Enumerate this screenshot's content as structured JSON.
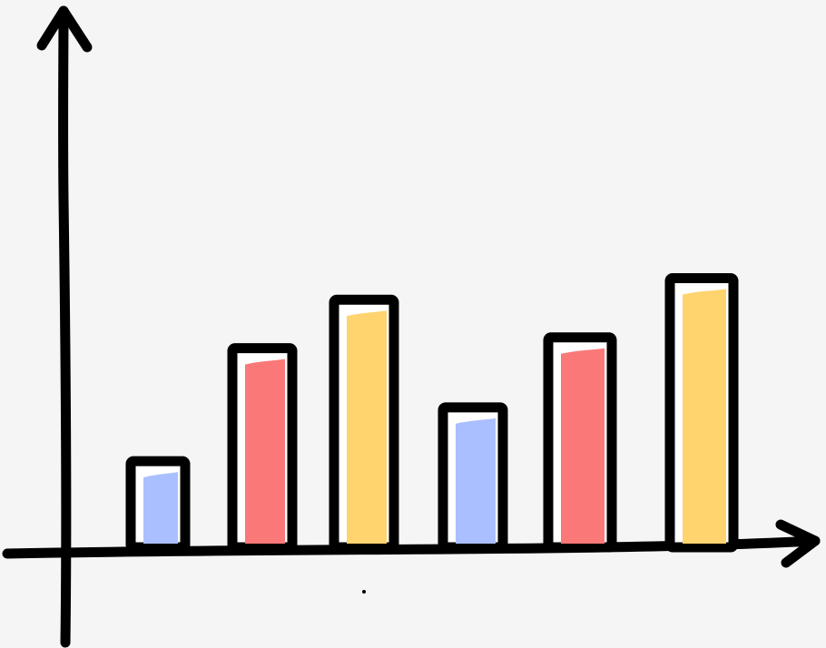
{
  "chart_data": {
    "type": "bar",
    "title": "",
    "xlabel": "",
    "ylabel": "",
    "grid": false,
    "legend": "none",
    "ylim": [
      0,
      10
    ],
    "values": [
      1.6,
      3.7,
      4.6,
      2.6,
      3.9,
      5.0
    ],
    "colors": [
      "#aabfff",
      "#fb7878",
      "#ffd36e",
      "#aabfff",
      "#fb7878",
      "#ffd36e"
    ]
  },
  "colors": {
    "background": "#f5f5f5",
    "ink": "#000000",
    "bar_highlight": "#ffffff"
  }
}
